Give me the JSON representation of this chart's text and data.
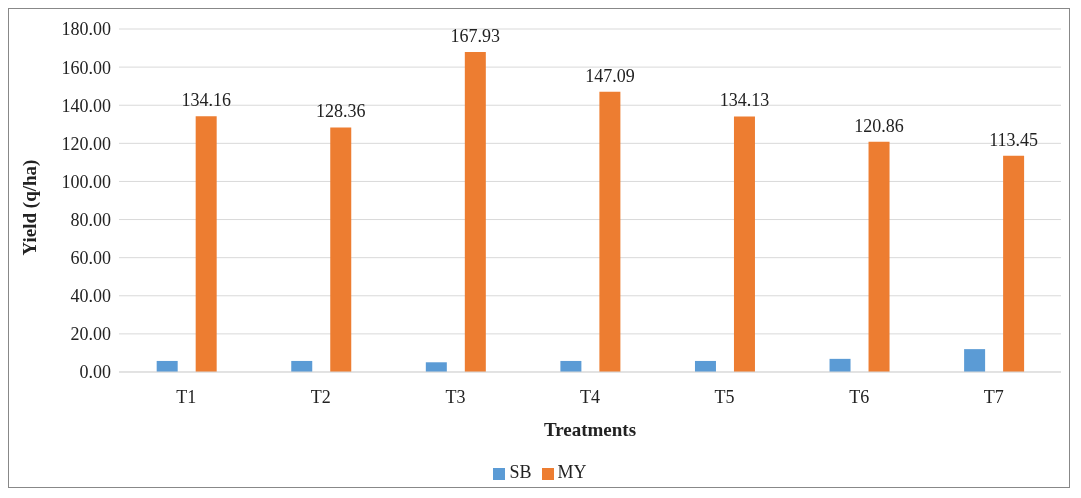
{
  "chart_data": {
    "type": "bar",
    "xlabel": "Treatments",
    "ylabel": "Yield (q/ha)",
    "categories": [
      "T1",
      "T2",
      "T3",
      "T4",
      "T5",
      "T6",
      "T7"
    ],
    "series": [
      {
        "name": "SB",
        "color": "#5b9bd5",
        "values": [
          5.8,
          5.8,
          5.1,
          5.8,
          5.8,
          6.9,
          12.0
        ]
      },
      {
        "name": "MY",
        "color": "#ed7d31",
        "values": [
          134.16,
          128.36,
          167.93,
          147.09,
          134.13,
          120.86,
          113.45
        ],
        "value_labels": [
          "134.16",
          "128.36",
          "167.93",
          "147.09",
          "134.13",
          "120.86",
          "113.45"
        ]
      }
    ],
    "ylim": [
      0,
      180
    ],
    "yticks": [
      {
        "value": 0,
        "label": "0.00"
      },
      {
        "value": 20,
        "label": "20.00"
      },
      {
        "value": 40,
        "label": "40.00"
      },
      {
        "value": 60,
        "label": "60.00"
      },
      {
        "value": 80,
        "label": "80.00"
      },
      {
        "value": 100,
        "label": "100.00"
      },
      {
        "value": 120,
        "label": "120.00"
      },
      {
        "value": 140,
        "label": "140.00"
      },
      {
        "value": 160,
        "label": "160.00"
      },
      {
        "value": 180,
        "label": "180.00"
      }
    ],
    "grid": "y",
    "legend": "bottom"
  }
}
